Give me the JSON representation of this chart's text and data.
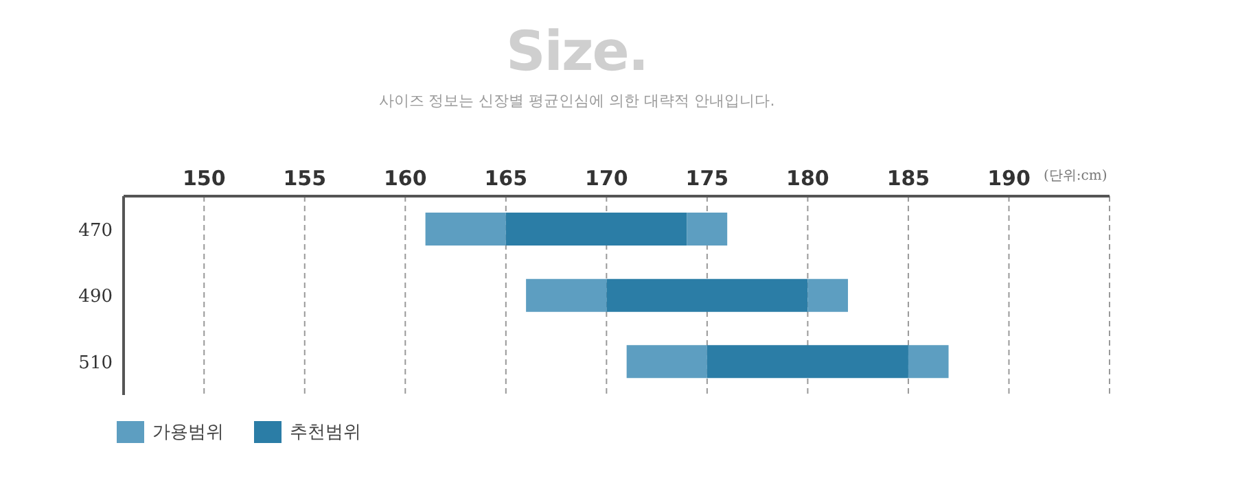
{
  "chart_data": {
    "type": "bar",
    "orientation": "horizontal",
    "title": "Size.",
    "subtitle": "사이즈 정보는 신장별 평균인심에 의한 대략적 안내입니다.",
    "xlabel": "(단위:cm)",
    "categories": [
      "470",
      "490",
      "510"
    ],
    "series": [
      {
        "name": "가용범위",
        "color": "#5d9ec1",
        "base": [
          161,
          166,
          171
        ],
        "values": [
          4,
          4,
          4
        ]
      },
      {
        "name": "추천범위",
        "color": "#2b7da6",
        "base": [
          165,
          170,
          175
        ],
        "values": [
          9,
          10,
          10
        ]
      },
      {
        "color": "#5d9ec1",
        "base": [
          174,
          180,
          185
        ],
        "values": [
          2,
          2,
          2
        ]
      }
    ],
    "xlim": [
      146,
      195
    ],
    "xticks": [
      150,
      155,
      160,
      165,
      170,
      175,
      180,
      185,
      190
    ],
    "grid": "x",
    "legend": "bottom left"
  }
}
